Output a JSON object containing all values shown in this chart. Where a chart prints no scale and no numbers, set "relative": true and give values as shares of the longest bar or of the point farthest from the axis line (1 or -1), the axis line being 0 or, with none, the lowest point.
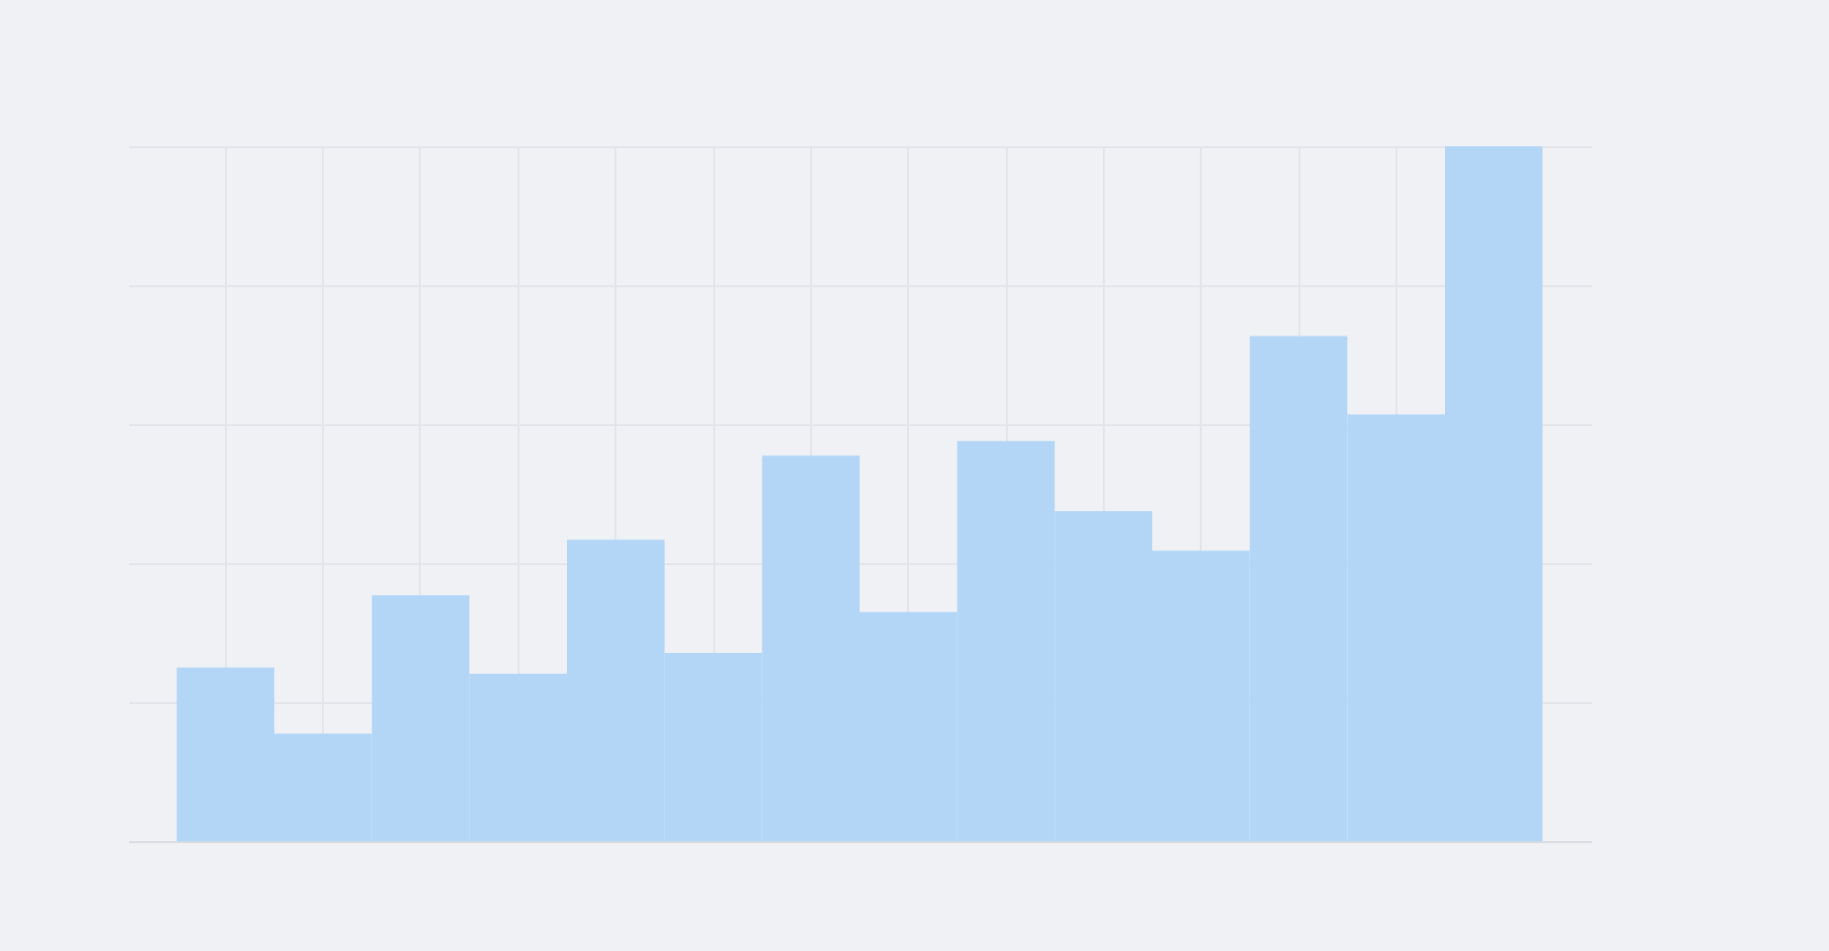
{
  "chart_data": {
    "type": "bar",
    "relative": true,
    "grid": true,
    "color": "#b3d6f6",
    "categories": [
      null,
      null,
      null,
      null,
      null,
      null,
      null,
      null,
      null,
      null,
      null,
      null,
      null,
      null
    ],
    "values": [
      0.25,
      0.155,
      0.354,
      0.241,
      0.434,
      0.271,
      0.555,
      0.33,
      0.576,
      0.475,
      0.418,
      0.727,
      0.614,
      1
    ]
  }
}
